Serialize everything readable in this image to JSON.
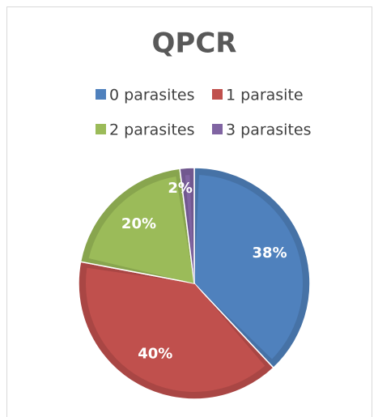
{
  "chart_data": {
    "type": "pie",
    "title": "QPCR",
    "categories": [
      "0 parasites",
      "1 parasite",
      "2 parasites",
      "3 parasites"
    ],
    "values": [
      38,
      40,
      20,
      2
    ],
    "value_labels": [
      "38%",
      "40%",
      "20%",
      "2%"
    ],
    "colors": [
      "#4f81bd",
      "#c0504d",
      "#9bbb59",
      "#8064a2"
    ],
    "legend": "top"
  }
}
